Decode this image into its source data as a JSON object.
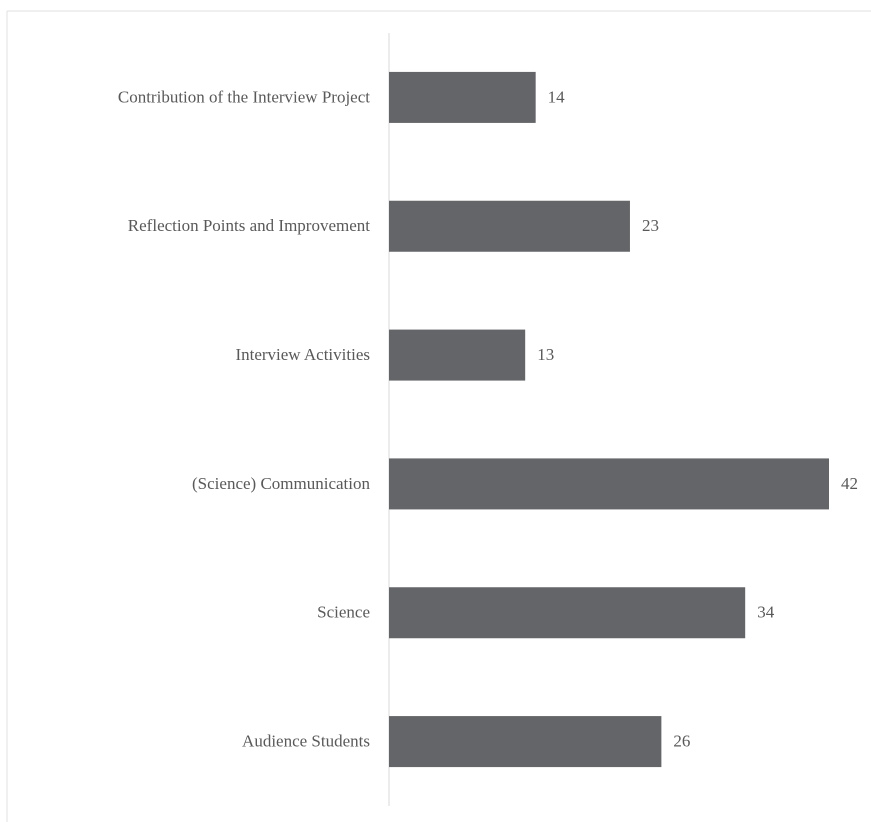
{
  "chart_data": {
    "type": "bar",
    "orientation": "horizontal",
    "categories": [
      "Contribution of the Interview Project",
      "Reflection Points and Improvement",
      "Interview Activities",
      "(Science) Communication",
      "Science",
      "Audience Students"
    ],
    "values": [
      14,
      23,
      13,
      42,
      34,
      26
    ],
    "color": "#646568"
  }
}
